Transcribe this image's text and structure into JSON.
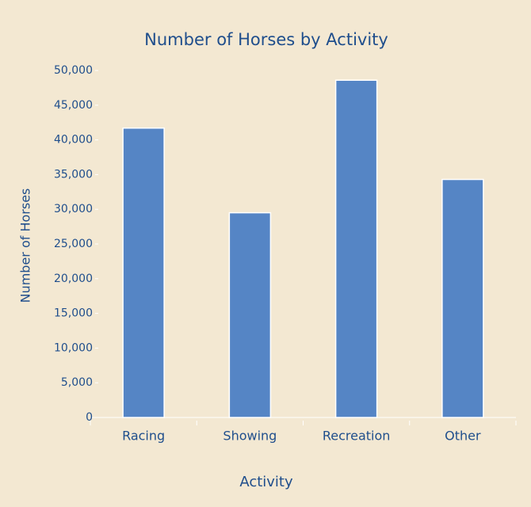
{
  "chart_data": {
    "type": "bar",
    "title": "Number of Horses by Activity",
    "x_label": "Activity",
    "y_label": "Number of Horses",
    "categories": [
      "Racing",
      "Showing",
      "Recreation",
      "Other"
    ],
    "values": [
      41700,
      29500,
      48600,
      34300
    ],
    "color": "#5585c5",
    "ylim": [
      0,
      50000
    ],
    "yticks": [
      0,
      {
        "value": 5000,
        "label": "5,000"
      },
      {
        "value": 10000,
        "label": "10,000"
      },
      {
        "value": 15000,
        "label": "15,000"
      },
      {
        "value": 20000,
        "label": "20,000"
      },
      {
        "value": 25000,
        "label": "25,000"
      },
      {
        "value": 30000,
        "label": "30,000"
      },
      {
        "value": 35000,
        "label": "35,000"
      },
      {
        "value": 40000,
        "label": "40,000"
      },
      {
        "value": 45000,
        "label": "45,000"
      },
      {
        "value": 50000,
        "label": "50,000"
      }
    ],
    "grid": false
  }
}
